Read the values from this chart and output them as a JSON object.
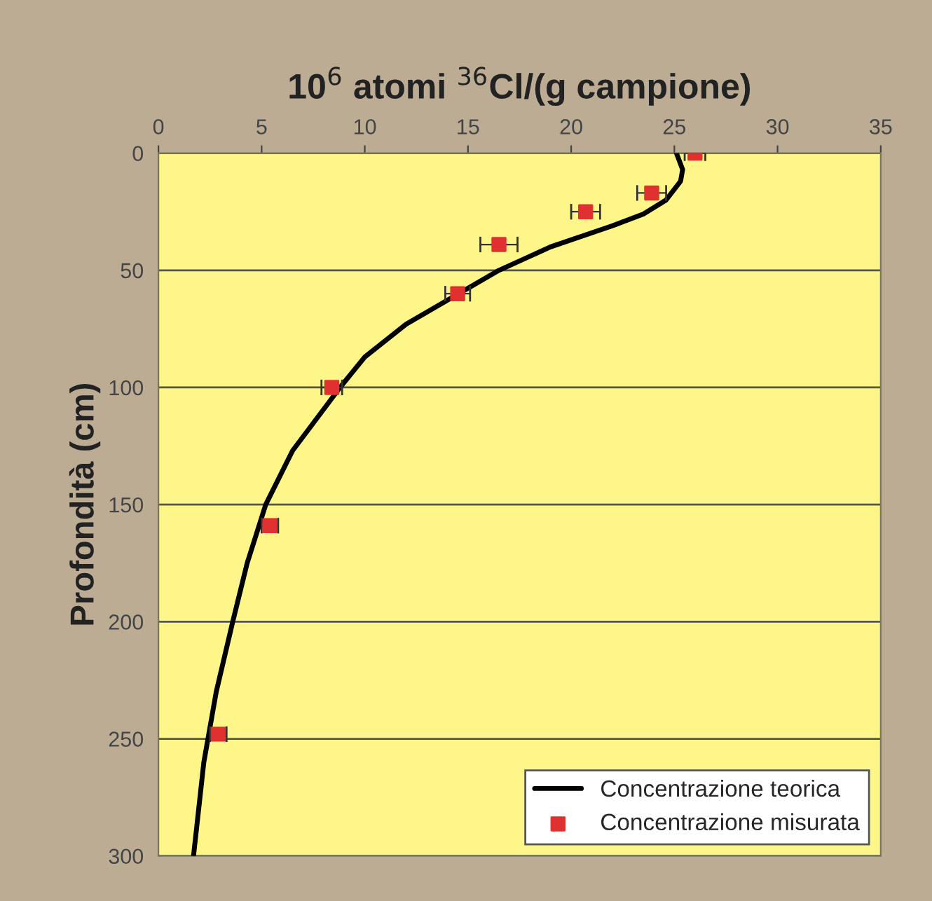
{
  "chart_data": {
    "type": "scatter",
    "title": "10$^{6}$ atomi $^{36}$Cl/(g campione)",
    "ylabel": "Profondità (cm)",
    "xlim": [
      0,
      35
    ],
    "xticks": [
      0,
      5,
      10,
      15,
      20,
      25,
      30,
      35
    ],
    "ylim": [
      300,
      0
    ],
    "yticks": [
      0,
      50,
      100,
      150,
      200,
      250,
      300
    ],
    "grid": "y",
    "legend": "bottom right",
    "series": [
      {
        "name": "Concentrazione teorica",
        "type": "line",
        "color": "#000000",
        "marker": "none",
        "line_style": "solid",
        "x": [
          25.1,
          25.4,
          25.3,
          24.6,
          23.5,
          22.0,
          19.0,
          16.5,
          12.0,
          10.0,
          8.8,
          6.5,
          5.2,
          4.3,
          3.6,
          2.8,
          2.2,
          1.7
        ],
        "values": [
          0,
          7,
          12,
          20,
          26,
          31,
          40,
          50,
          73,
          87,
          100,
          127,
          150,
          175,
          200,
          230,
          260,
          300
        ]
      },
      {
        "name": "Concentrazione misurata",
        "color": "#e03030",
        "marker": "square",
        "x": [
          26.0,
          23.9,
          20.7,
          16.5,
          14.5,
          8.4,
          5.4,
          2.9
        ],
        "values": [
          0,
          17,
          25,
          39,
          60,
          100,
          159,
          248
        ],
        "xerrors": [
          0.5,
          0.7,
          0.7,
          0.9,
          0.6,
          0.5,
          0.4,
          0.4
        ]
      }
    ]
  }
}
